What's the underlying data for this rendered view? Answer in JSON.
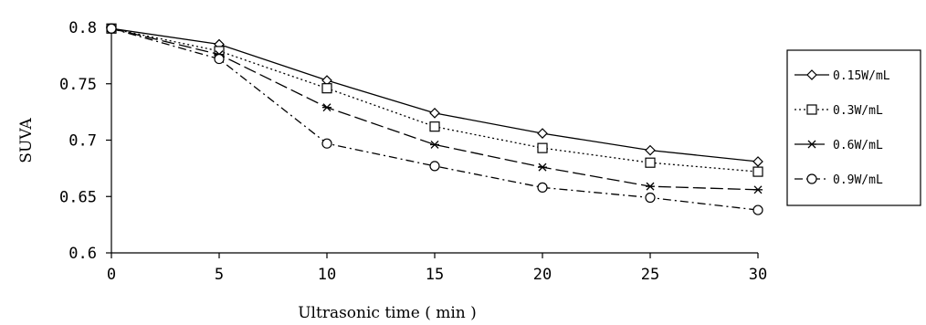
{
  "chart_data": {
    "type": "line",
    "xlabel": "Ultrasonic time ( min )",
    "ylabel": "SUVA",
    "x": [
      0,
      5,
      10,
      15,
      20,
      25,
      30
    ],
    "xticks": [
      "0",
      "5",
      "10",
      "15",
      "20",
      "25",
      "30"
    ],
    "yticks": [
      "0.6",
      "0.65",
      "0.7",
      "0.75",
      "0.8"
    ],
    "xlim": [
      0,
      30
    ],
    "ylim": [
      0.6,
      0.8
    ],
    "grid": false,
    "legend_position": "right",
    "series": [
      {
        "name": "0.15W/mL",
        "marker": "diamond",
        "dash": "solid",
        "values": [
          0.799,
          0.785,
          0.753,
          0.724,
          0.706,
          0.691,
          0.681
        ]
      },
      {
        "name": "0.3W/mL",
        "marker": "square",
        "dash": "dotted",
        "values": [
          0.799,
          0.779,
          0.746,
          0.712,
          0.693,
          0.68,
          0.672
        ]
      },
      {
        "name": "0.6W/mL",
        "marker": "star",
        "dash": "long-dash",
        "values": [
          0.799,
          0.776,
          0.729,
          0.696,
          0.676,
          0.659,
          0.656
        ]
      },
      {
        "name": "0.9W/mL",
        "marker": "circle",
        "dash": "dash-dot",
        "values": [
          0.799,
          0.772,
          0.697,
          0.677,
          0.658,
          0.649,
          0.638
        ]
      }
    ]
  }
}
